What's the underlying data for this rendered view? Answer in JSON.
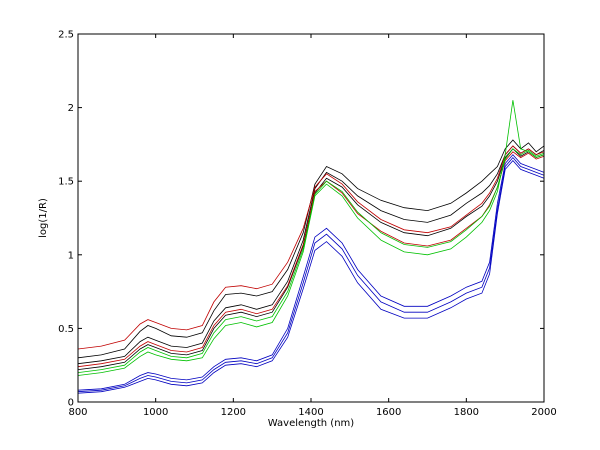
{
  "chart_data": {
    "type": "line",
    "title": "",
    "xlabel": "Wavelength (nm)",
    "ylabel": "log(1/R)",
    "xlim": [
      800,
      2000
    ],
    "ylim": [
      0,
      2.5
    ],
    "xticks": [
      800,
      1000,
      1200,
      1400,
      1600,
      1800,
      2000
    ],
    "yticks": [
      0,
      0.5,
      1,
      1.5,
      2,
      2.5
    ],
    "xtick_labels": [
      "800",
      "1000",
      "1200",
      "1400",
      "1600",
      "1800",
      "2000"
    ],
    "ytick_labels": [
      "0",
      "0.5",
      "1",
      "1.5",
      "2",
      "2.5"
    ],
    "grid": false,
    "legend": "none",
    "x": [
      800,
      860,
      920,
      960,
      980,
      1000,
      1040,
      1080,
      1120,
      1150,
      1180,
      1220,
      1260,
      1300,
      1340,
      1380,
      1410,
      1440,
      1480,
      1520,
      1580,
      1640,
      1700,
      1760,
      1800,
      1840,
      1860,
      1880,
      1900,
      1920,
      1940,
      1960,
      1980,
      2000
    ],
    "series": [
      {
        "color": "#000000",
        "values": [
          0.3,
          0.32,
          0.36,
          0.48,
          0.52,
          0.5,
          0.45,
          0.44,
          0.47,
          0.62,
          0.73,
          0.74,
          0.72,
          0.75,
          0.9,
          1.15,
          1.48,
          1.6,
          1.55,
          1.45,
          1.37,
          1.32,
          1.3,
          1.35,
          1.42,
          1.5,
          1.55,
          1.6,
          1.72,
          1.78,
          1.72,
          1.76,
          1.7,
          1.74
        ]
      },
      {
        "color": "#000000",
        "values": [
          0.26,
          0.28,
          0.31,
          0.41,
          0.44,
          0.42,
          0.38,
          0.37,
          0.4,
          0.55,
          0.64,
          0.66,
          0.63,
          0.66,
          0.82,
          1.1,
          1.45,
          1.56,
          1.5,
          1.4,
          1.3,
          1.24,
          1.22,
          1.27,
          1.35,
          1.42,
          1.47,
          1.55,
          1.68,
          1.74,
          1.69,
          1.72,
          1.68,
          1.71
        ]
      },
      {
        "color": "#000000",
        "values": [
          0.22,
          0.24,
          0.27,
          0.36,
          0.39,
          0.37,
          0.33,
          0.32,
          0.35,
          0.5,
          0.59,
          0.61,
          0.58,
          0.61,
          0.78,
          1.06,
          1.42,
          1.52,
          1.46,
          1.34,
          1.22,
          1.15,
          1.13,
          1.18,
          1.26,
          1.33,
          1.4,
          1.5,
          1.66,
          1.72,
          1.67,
          1.7,
          1.66,
          1.68
        ]
      },
      {
        "color": "#c00000",
        "values": [
          0.36,
          0.38,
          0.42,
          0.53,
          0.56,
          0.54,
          0.5,
          0.49,
          0.52,
          0.68,
          0.78,
          0.79,
          0.77,
          0.8,
          0.95,
          1.18,
          1.46,
          1.55,
          1.48,
          1.36,
          1.24,
          1.17,
          1.15,
          1.19,
          1.27,
          1.35,
          1.42,
          1.52,
          1.68,
          1.74,
          1.69,
          1.72,
          1.68,
          1.7
        ]
      },
      {
        "color": "#c00000",
        "values": [
          0.24,
          0.26,
          0.29,
          0.38,
          0.41,
          0.39,
          0.35,
          0.34,
          0.37,
          0.52,
          0.61,
          0.63,
          0.6,
          0.63,
          0.79,
          1.07,
          1.43,
          1.5,
          1.42,
          1.28,
          1.16,
          1.08,
          1.06,
          1.1,
          1.18,
          1.26,
          1.34,
          1.46,
          1.64,
          1.7,
          1.66,
          1.69,
          1.65,
          1.67
        ]
      },
      {
        "color": "#00c000",
        "values": [
          0.18,
          0.2,
          0.23,
          0.31,
          0.34,
          0.32,
          0.29,
          0.28,
          0.3,
          0.43,
          0.52,
          0.54,
          0.51,
          0.54,
          0.72,
          1.02,
          1.4,
          1.48,
          1.4,
          1.25,
          1.1,
          1.02,
          1.0,
          1.04,
          1.12,
          1.22,
          1.3,
          1.43,
          1.68,
          2.05,
          1.72,
          1.7,
          1.66,
          1.68
        ]
      },
      {
        "color": "#00c000",
        "values": [
          0.2,
          0.22,
          0.25,
          0.34,
          0.37,
          0.35,
          0.31,
          0.3,
          0.33,
          0.47,
          0.56,
          0.58,
          0.55,
          0.58,
          0.75,
          1.04,
          1.41,
          1.5,
          1.43,
          1.29,
          1.15,
          1.07,
          1.05,
          1.09,
          1.17,
          1.26,
          1.33,
          1.46,
          1.65,
          1.72,
          1.68,
          1.71,
          1.67,
          1.69
        ]
      },
      {
        "color": "#0000c0",
        "values": [
          0.08,
          0.09,
          0.12,
          0.18,
          0.2,
          0.19,
          0.16,
          0.15,
          0.17,
          0.24,
          0.29,
          0.3,
          0.28,
          0.32,
          0.5,
          0.85,
          1.12,
          1.18,
          1.08,
          0.9,
          0.72,
          0.65,
          0.65,
          0.72,
          0.78,
          0.82,
          0.95,
          1.35,
          1.62,
          1.68,
          1.62,
          1.6,
          1.58,
          1.56
        ]
      },
      {
        "color": "#0000c0",
        "values": [
          0.07,
          0.08,
          0.11,
          0.16,
          0.18,
          0.17,
          0.14,
          0.13,
          0.15,
          0.22,
          0.27,
          0.28,
          0.26,
          0.3,
          0.47,
          0.81,
          1.08,
          1.14,
          1.04,
          0.86,
          0.68,
          0.61,
          0.61,
          0.68,
          0.74,
          0.78,
          0.91,
          1.31,
          1.6,
          1.66,
          1.6,
          1.58,
          1.56,
          1.54
        ]
      },
      {
        "color": "#0000c0",
        "values": [
          0.06,
          0.07,
          0.1,
          0.14,
          0.16,
          0.15,
          0.12,
          0.11,
          0.13,
          0.2,
          0.25,
          0.26,
          0.24,
          0.28,
          0.44,
          0.77,
          1.03,
          1.09,
          0.99,
          0.81,
          0.63,
          0.57,
          0.57,
          0.64,
          0.7,
          0.74,
          0.87,
          1.28,
          1.58,
          1.64,
          1.58,
          1.56,
          1.54,
          1.52
        ]
      }
    ]
  }
}
